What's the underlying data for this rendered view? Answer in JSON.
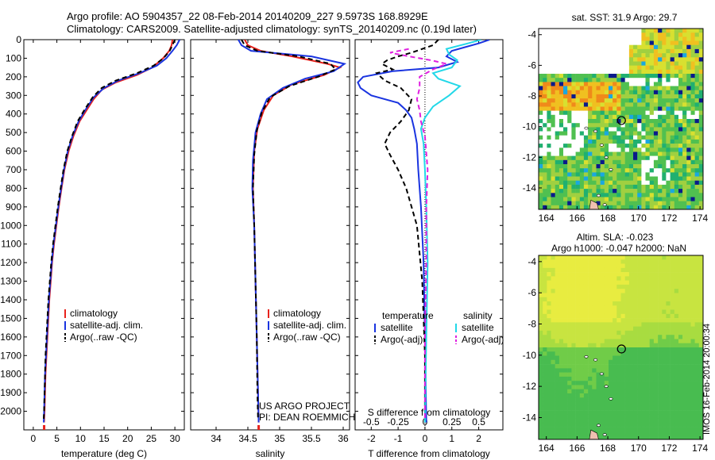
{
  "header": {
    "line1": "Argo profile: AO 5904357_22 08-Feb-2014 20140209_227 9.5973S 168.8929E",
    "line2": "Climatology: CARS2009. Satellite-adjusted climatology: synTS_20140209.nc (0.19d later)"
  },
  "side_label": "IMOS 16-Feb-2014 20:00:34",
  "credits": {
    "line1": "US ARGO PROJECT",
    "line2": "PI: DEAN ROEMMICH"
  },
  "colors": {
    "red": "#e8221c",
    "blue": "#1a34e0",
    "black": "#000000",
    "cyan": "#22d8e8",
    "magenta": "#e020e0"
  },
  "chart_data": [
    {
      "type": "line",
      "name": "temperature-profile",
      "xlabel": "temperature (deg C)",
      "xlim": [
        -2,
        32
      ],
      "ylim": [
        2100,
        0
      ],
      "xticks": [
        0,
        5,
        10,
        15,
        20,
        25,
        30
      ],
      "yticks": [
        0,
        100,
        200,
        300,
        400,
        500,
        600,
        700,
        800,
        900,
        1000,
        1100,
        1200,
        1300,
        1400,
        1500,
        1600,
        1700,
        1800,
        1900,
        2000
      ],
      "legend": [
        "climatology",
        "satellite-adj. clim.",
        "Argo(..raw -QC)"
      ],
      "series": [
        {
          "name": "climatology",
          "color": "red",
          "dash": false,
          "points": [
            [
              29.5,
              0
            ],
            [
              29.3,
              30
            ],
            [
              28.8,
              60
            ],
            [
              27.5,
              100
            ],
            [
              25.2,
              150
            ],
            [
              22,
              190
            ],
            [
              17.5,
              230
            ],
            [
              14.5,
              270
            ],
            [
              12.8,
              320
            ],
            [
              11.3,
              380
            ],
            [
              9.8,
              440
            ],
            [
              8.5,
              520
            ],
            [
              7.5,
              600
            ],
            [
              6.6,
              700
            ],
            [
              6,
              800
            ],
            [
              5.4,
              900
            ],
            [
              4.9,
              1000
            ],
            [
              4.4,
              1100
            ],
            [
              4,
              1200
            ],
            [
              3.7,
              1300
            ],
            [
              3.4,
              1400
            ],
            [
              3.2,
              1500
            ],
            [
              3,
              1600
            ],
            [
              2.8,
              1700
            ],
            [
              2.6,
              1800
            ],
            [
              2.5,
              1900
            ],
            [
              2.4,
              2000
            ],
            [
              2.3,
              2060
            ]
          ]
        },
        {
          "name": "satellite-adj. clim.",
          "color": "blue",
          "dash": false,
          "points": [
            [
              31,
              0
            ],
            [
              30.4,
              30
            ],
            [
              29.5,
              60
            ],
            [
              28.2,
              100
            ],
            [
              26.2,
              140
            ],
            [
              22.5,
              180
            ],
            [
              18,
              220
            ],
            [
              15,
              260
            ],
            [
              12.8,
              310
            ],
            [
              11,
              380
            ],
            [
              9.6,
              440
            ],
            [
              8.3,
              520
            ],
            [
              7.3,
              600
            ],
            [
              6.5,
              700
            ],
            [
              5.9,
              800
            ],
            [
              5.3,
              900
            ],
            [
              4.8,
              1000
            ],
            [
              4.3,
              1100
            ],
            [
              3.9,
              1200
            ],
            [
              3.6,
              1300
            ],
            [
              3.3,
              1400
            ],
            [
              3.1,
              1500
            ],
            [
              2.9,
              1600
            ],
            [
              2.7,
              1700
            ],
            [
              2.5,
              1800
            ],
            [
              2.4,
              1900
            ],
            [
              2.3,
              2000
            ],
            [
              2.2,
              2060
            ]
          ]
        },
        {
          "name": "Argo(..raw -QC)",
          "color": "black",
          "dash": true,
          "points": [
            [
              30,
              0
            ],
            [
              29.5,
              30
            ],
            [
              28.9,
              60
            ],
            [
              27.6,
              100
            ],
            [
              25.5,
              140
            ],
            [
              22,
              180
            ],
            [
              17.5,
              220
            ],
            [
              14.5,
              260
            ],
            [
              12.6,
              310
            ],
            [
              10.8,
              380
            ],
            [
              9.4,
              440
            ],
            [
              8.2,
              520
            ],
            [
              7.2,
              600
            ],
            [
              6.4,
              700
            ],
            [
              5.8,
              800
            ],
            [
              5.2,
              900
            ],
            [
              4.7,
              1000
            ],
            [
              4.2,
              1100
            ],
            [
              3.8,
              1200
            ],
            [
              3.5,
              1300
            ],
            [
              3.2,
              1400
            ],
            [
              3,
              1500
            ],
            [
              2.8,
              1600
            ],
            [
              2.6,
              1700
            ],
            [
              2.5,
              1800
            ],
            [
              2.4,
              1900
            ],
            [
              2.3,
              2000
            ],
            [
              2.2,
              2040
            ]
          ]
        }
      ]
    },
    {
      "type": "line",
      "name": "salinity-profile",
      "xlabel": "salinity",
      "xlim": [
        33.6,
        36.1
      ],
      "ylim": [
        2100,
        0
      ],
      "xticks": [
        34,
        34.5,
        35,
        35.5,
        36
      ],
      "legend": [
        "climatology",
        "satellite-adj. clim.",
        "Argo(..raw -QC)"
      ],
      "series": [
        {
          "name": "climatology",
          "color": "red",
          "dash": false,
          "points": [
            [
              34.45,
              0
            ],
            [
              34.5,
              30
            ],
            [
              34.7,
              60
            ],
            [
              35.2,
              90
            ],
            [
              35.75,
              130
            ],
            [
              35.95,
              150
            ],
            [
              35.7,
              190
            ],
            [
              35.2,
              240
            ],
            [
              34.9,
              300
            ],
            [
              34.75,
              380
            ],
            [
              34.65,
              480
            ],
            [
              34.6,
              600
            ],
            [
              34.58,
              800
            ],
            [
              34.6,
              1000
            ],
            [
              34.62,
              1300
            ],
            [
              34.64,
              1600
            ],
            [
              34.66,
              1900
            ],
            [
              34.67,
              2060
            ]
          ]
        },
        {
          "name": "satellite-adj. clim.",
          "color": "blue",
          "dash": false,
          "points": [
            [
              34.35,
              0
            ],
            [
              34.4,
              30
            ],
            [
              34.55,
              60
            ],
            [
              35.5,
              90
            ],
            [
              36.02,
              130
            ],
            [
              35.85,
              170
            ],
            [
              35.4,
              210
            ],
            [
              35.05,
              260
            ],
            [
              34.8,
              320
            ],
            [
              34.7,
              400
            ],
            [
              34.62,
              500
            ],
            [
              34.58,
              650
            ],
            [
              34.57,
              800
            ],
            [
              34.6,
              1000
            ],
            [
              34.62,
              1300
            ],
            [
              34.64,
              1600
            ],
            [
              34.66,
              1900
            ],
            [
              34.67,
              2060
            ]
          ]
        },
        {
          "name": "Argo(..raw -QC)",
          "color": "black",
          "dash": true,
          "points": [
            [
              34.4,
              0
            ],
            [
              34.45,
              30
            ],
            [
              34.65,
              60
            ],
            [
              35.3,
              90
            ],
            [
              35.8,
              130
            ],
            [
              35.88,
              160
            ],
            [
              35.6,
              200
            ],
            [
              35.15,
              250
            ],
            [
              34.85,
              310
            ],
            [
              34.72,
              390
            ],
            [
              34.64,
              490
            ],
            [
              34.6,
              620
            ],
            [
              34.58,
              800
            ],
            [
              34.6,
              1000
            ],
            [
              34.62,
              1300
            ],
            [
              34.64,
              1600
            ],
            [
              34.65,
              1900
            ],
            [
              34.66,
              2040
            ]
          ]
        }
      ]
    },
    {
      "type": "line",
      "name": "difference-profile",
      "xlabel": "T difference from climatology",
      "xlabel2": "S difference from climatology",
      "xlim": [
        -2.6,
        2.9
      ],
      "ylim": [
        2100,
        0
      ],
      "xticks_T": [
        -2,
        -1,
        0,
        1,
        2
      ],
      "xticks_S": [
        -0.5,
        -0.25,
        0,
        0.25,
        0.5
      ],
      "legend": {
        "temperature": "temperature",
        "salinity": "salinity",
        "satellite": "satellite",
        "argo": "Argo(-adj)"
      },
      "series": [
        {
          "name": "temperature satellite",
          "color": "blue",
          "dash": false,
          "points": [
            [
              2.4,
              0
            ],
            [
              2,
              20
            ],
            [
              1.5,
              40
            ],
            [
              1,
              60
            ],
            [
              0.8,
              90
            ],
            [
              1.2,
              120
            ],
            [
              0.5,
              150
            ],
            [
              -1.2,
              170
            ],
            [
              -2.3,
              200
            ],
            [
              -2.5,
              230
            ],
            [
              -2.4,
              260
            ],
            [
              -2,
              300
            ],
            [
              -1,
              340
            ],
            [
              -0.7,
              380
            ],
            [
              -0.5,
              420
            ],
            [
              -0.4,
              480
            ],
            [
              -0.3,
              560
            ],
            [
              -0.25,
              700
            ],
            [
              -0.15,
              900
            ],
            [
              -0.05,
              1200
            ],
            [
              0,
              1600
            ],
            [
              0.05,
              2060
            ]
          ]
        },
        {
          "name": "temperature Argo(-adj)",
          "color": "black",
          "dash": true,
          "points": [
            [
              0.5,
              0
            ],
            [
              0.3,
              30
            ],
            [
              -0.5,
              70
            ],
            [
              -1,
              90
            ],
            [
              -1.4,
              110
            ],
            [
              -1.6,
              130
            ],
            [
              -1.2,
              160
            ],
            [
              -1.8,
              180
            ],
            [
              -1.5,
              220
            ],
            [
              -0.9,
              260
            ],
            [
              -0.5,
              320
            ],
            [
              -0.6,
              380
            ],
            [
              -0.9,
              440
            ],
            [
              -1.3,
              500
            ],
            [
              -1.5,
              560
            ],
            [
              -1.3,
              620
            ],
            [
              -1,
              700
            ],
            [
              -0.7,
              800
            ],
            [
              -0.3,
              1000
            ],
            [
              -0.1,
              1300
            ],
            [
              0,
              1700
            ],
            [
              0,
              2040
            ]
          ]
        },
        {
          "name": "salinity satellite",
          "color": "cyan",
          "dash": false,
          "points": [
            [
              2.1,
              0
            ],
            [
              1.6,
              20
            ],
            [
              0.8,
              50
            ],
            [
              0.9,
              80
            ],
            [
              1.2,
              110
            ],
            [
              1,
              150
            ],
            [
              0.3,
              180
            ],
            [
              0.5,
              210
            ],
            [
              1.3,
              250
            ],
            [
              0.9,
              300
            ],
            [
              0.3,
              360
            ],
            [
              0,
              420
            ],
            [
              -0.15,
              480
            ],
            [
              -0.05,
              560
            ],
            [
              0,
              700
            ],
            [
              0.05,
              900
            ],
            [
              0.1,
              1200
            ],
            [
              0.05,
              1600
            ],
            [
              0,
              2060
            ]
          ]
        },
        {
          "name": "salinity Argo(-adj)",
          "color": "magenta",
          "dash": true,
          "points": [
            [
              -0.6,
              50
            ],
            [
              -1.3,
              70
            ],
            [
              -0.6,
              90
            ],
            [
              0.2,
              110
            ],
            [
              0.8,
              130
            ],
            [
              0.3,
              160
            ],
            [
              -0.2,
              200
            ],
            [
              -0.2,
              260
            ],
            [
              -0.3,
              320
            ],
            [
              -0.2,
              380
            ],
            [
              -0.15,
              440
            ],
            [
              0,
              520
            ],
            [
              0.1,
              700
            ],
            [
              0.05,
              900
            ],
            [
              0.05,
              1200
            ],
            [
              0,
              1600
            ],
            [
              0,
              2040
            ]
          ]
        }
      ]
    },
    {
      "type": "heatmap",
      "name": "sst-map",
      "title": "sat. SST: 31.9 Argo: 29.7",
      "xticks": [
        164,
        166,
        168,
        170,
        172,
        174
      ],
      "yticks": [
        -4,
        -6,
        -8,
        -10,
        -12,
        -14
      ],
      "xlim": [
        163.5,
        174.2
      ],
      "ylim": [
        -15.4,
        -3.6
      ],
      "marker": [
        168.89,
        -9.6
      ]
    },
    {
      "type": "heatmap",
      "name": "sla-map",
      "title": "Altim. SLA: -0.023",
      "subtitle": "Argo h1000: -0.047 h2000: NaN",
      "xticks": [
        164,
        166,
        168,
        170,
        172,
        174
      ],
      "yticks": [
        -4,
        -6,
        -8,
        -10,
        -12,
        -14
      ],
      "xlim": [
        163.5,
        174.2
      ],
      "ylim": [
        -15.4,
        -3.6
      ],
      "marker": [
        168.89,
        -9.6
      ]
    }
  ]
}
